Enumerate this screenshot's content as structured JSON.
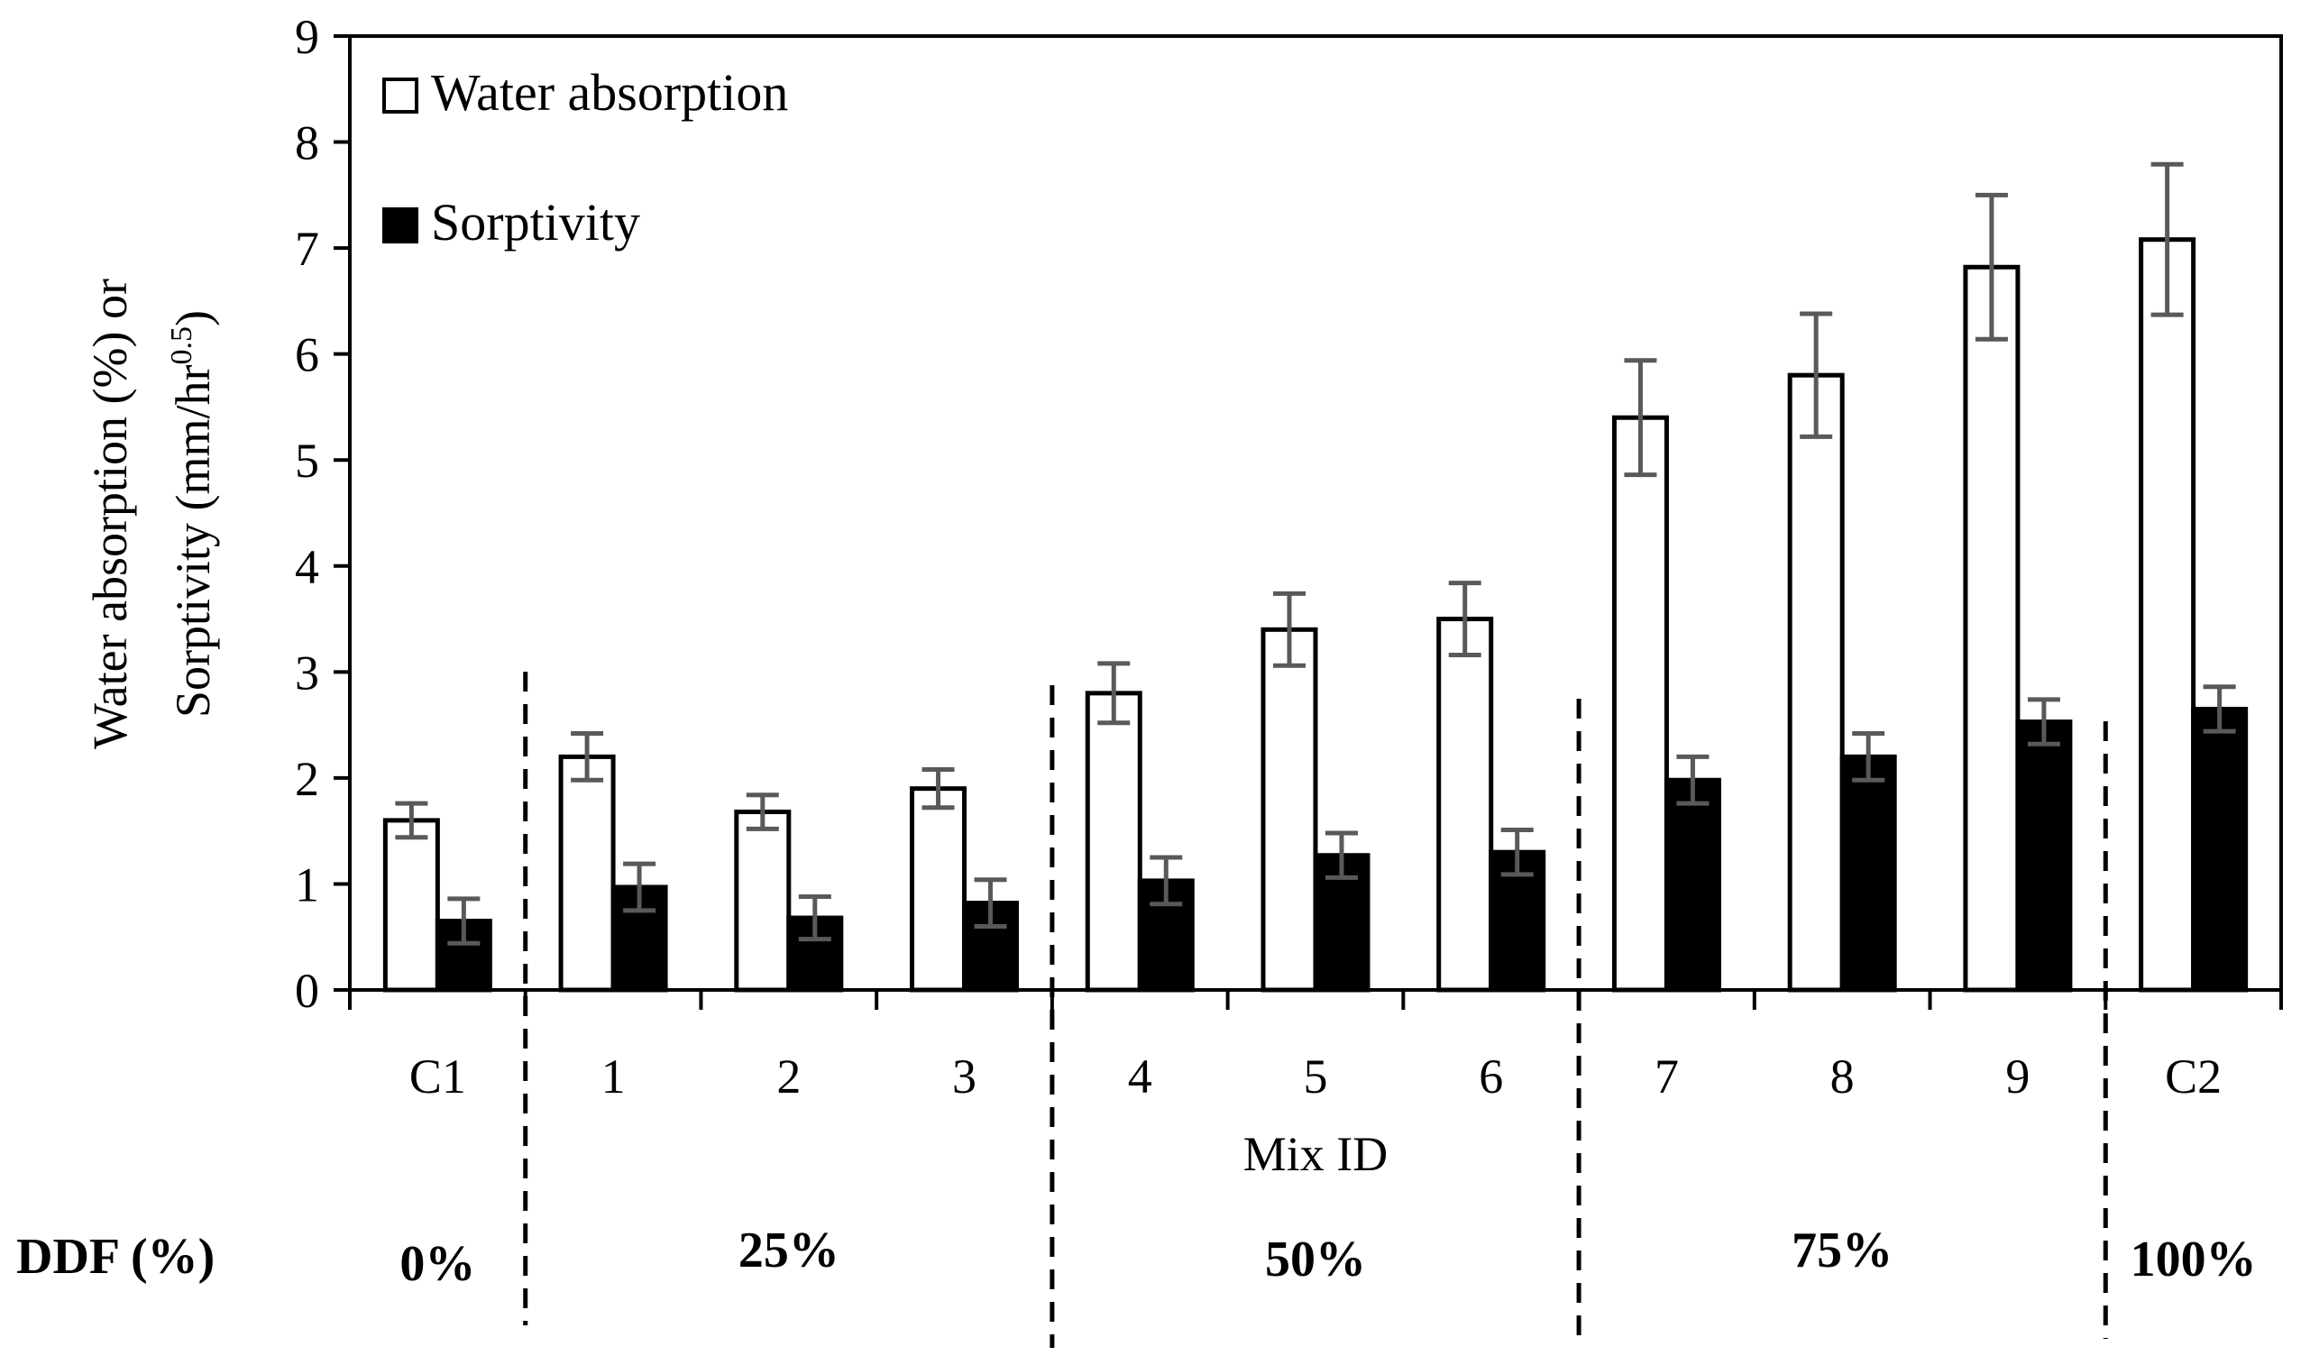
{
  "chart_data": {
    "type": "bar",
    "title": "",
    "xlabel": "Mix ID",
    "ylabel_line1": "Water absorption (%) or",
    "ylabel_line2_main": "Sorptivity (mm/hr",
    "ylabel_line2_sup": "0.5",
    "ylabel_line2_end": ")",
    "ylim": [
      0,
      9
    ],
    "yticks": [
      "0",
      "1",
      "2",
      "3",
      "4",
      "5",
      "6",
      "7",
      "8",
      "9"
    ],
    "categories": [
      "C1",
      "1",
      "2",
      "3",
      "4",
      "5",
      "6",
      "7",
      "8",
      "9",
      "C2"
    ],
    "series": [
      {
        "name": "Water absorption",
        "fill": "#ffffff",
        "values": [
          1.6,
          2.2,
          1.68,
          1.9,
          2.8,
          3.4,
          3.5,
          5.4,
          5.8,
          6.82,
          7.08
        ],
        "err": [
          0.16,
          0.22,
          0.16,
          0.18,
          0.28,
          0.34,
          0.34,
          0.54,
          0.58,
          0.68,
          0.71
        ]
      },
      {
        "name": "Sorptivity",
        "fill": "#000000",
        "values": [
          0.65,
          0.97,
          0.68,
          0.82,
          1.03,
          1.27,
          1.3,
          1.98,
          2.2,
          2.53,
          2.65
        ],
        "err": [
          0.21,
          0.22,
          0.2,
          0.22,
          0.22,
          0.21,
          0.21,
          0.22,
          0.22,
          0.21,
          0.21
        ]
      }
    ],
    "legend_position": "top-left",
    "group_label_title": "DDF (%)",
    "groups": [
      {
        "label": "0%",
        "start": 0,
        "end": 0
      },
      {
        "label": "25%",
        "start": 1,
        "end": 3
      },
      {
        "label": "50%",
        "start": 4,
        "end": 6
      },
      {
        "label": "75%",
        "start": 7,
        "end": 9
      },
      {
        "label": "100%",
        "start": 10,
        "end": 10
      }
    ],
    "colors": {
      "axis": "#000000",
      "errorbar": "#595959"
    }
  }
}
